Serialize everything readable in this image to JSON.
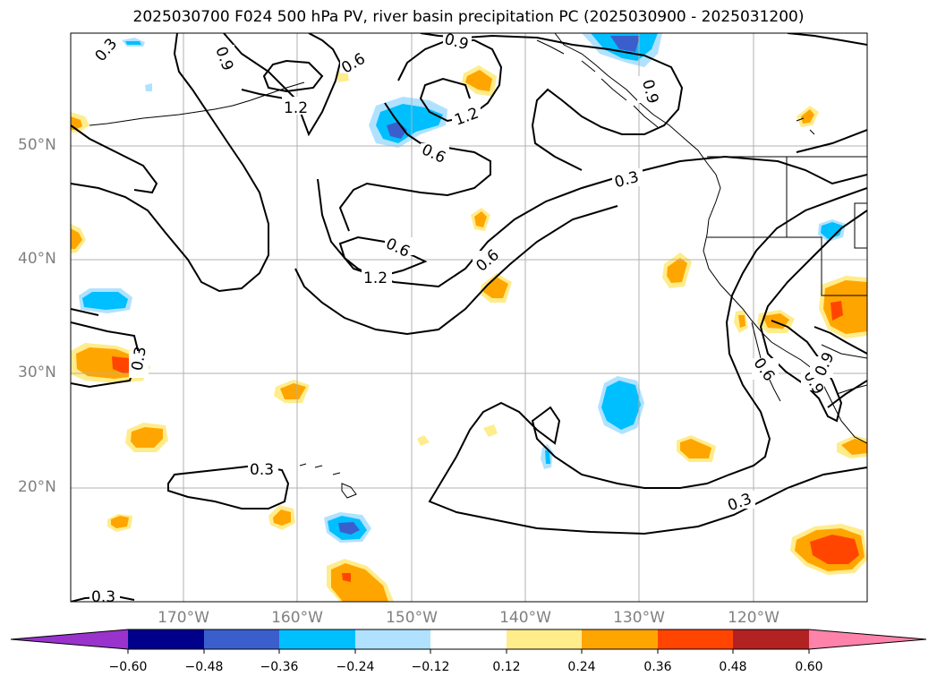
{
  "title": "2025030700 F024 500 hPa PV, river basin precipitation PC (2025030900 - 2025031200)",
  "lat_labels": [
    "50°N",
    "40°N",
    "30°N",
    "20°N"
  ],
  "lon_labels": [
    "170°W",
    "160°W",
    "150°W",
    "140°W",
    "130°W",
    "120°W"
  ],
  "contour_labels": [
    "0.3",
    "0.9",
    "0.6",
    "1.2",
    "0.9",
    "0.6",
    "1.2",
    "0.6",
    "0.3",
    "0.6",
    "1.2",
    "0.9",
    "0.3",
    "0.3",
    "0.3",
    "0.3",
    "0.6",
    "0.9",
    "0.9"
  ],
  "colorbar": {
    "ticks": [
      "−0.60",
      "−0.48",
      "−0.36",
      "−0.24",
      "−0.12",
      "0.12",
      "0.24",
      "0.36",
      "0.48",
      "0.60"
    ],
    "colors": [
      "#9933cc",
      "#00008b",
      "#3a5fcd",
      "#00bfff",
      "#b0e2ff",
      "#ffffff",
      "#ffec8b",
      "#ffa500",
      "#ff4500",
      "#b22222",
      "#ff82ab"
    ]
  },
  "colors": {
    "contour": "#000000",
    "grid": "#b0b0b0",
    "tick_label": "#808080"
  }
}
